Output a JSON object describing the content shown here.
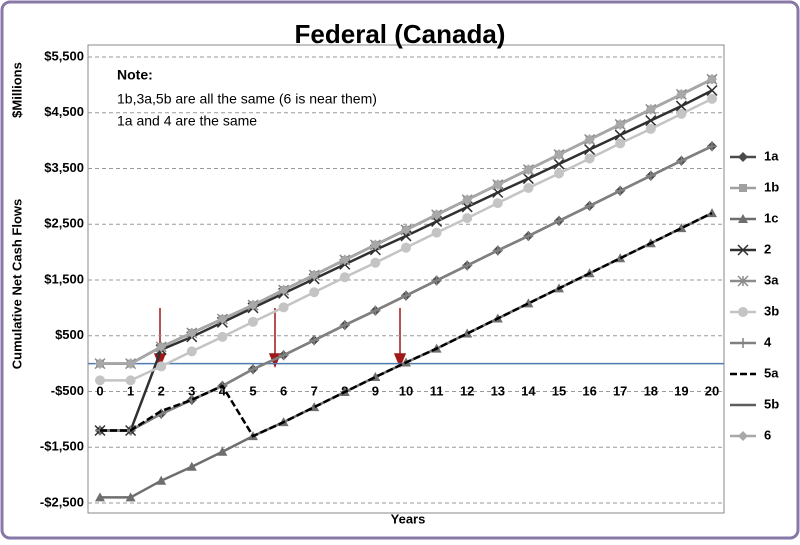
{
  "chart_data": {
    "type": "line",
    "title": "Federal (Canada)",
    "y_label": "Cumulative Net Cash Flows",
    "y_unit_label": "$Millions",
    "x_label": "Years",
    "notes": [
      "Note:",
      "1b,3a,5b are all the same (6 is near them)",
      "1a and 4 are the same"
    ],
    "categories": [
      0,
      1,
      2,
      3,
      4,
      5,
      6,
      7,
      8,
      9,
      10,
      11,
      12,
      13,
      14,
      15,
      16,
      17,
      18,
      19,
      20
    ],
    "ylim": [
      -2500,
      5500
    ],
    "yticks": [
      {
        "value": -2500,
        "label": "-$2,500"
      },
      {
        "value": -1500,
        "label": "-$1,500"
      },
      {
        "value": -500,
        "label": "-$500"
      },
      {
        "value": 500,
        "label": "$500"
      },
      {
        "value": 1500,
        "label": "$1,500"
      },
      {
        "value": 2500,
        "label": "$2,500"
      },
      {
        "value": 3500,
        "label": "$3,500"
      },
      {
        "value": 4500,
        "label": "$4,500"
      },
      {
        "value": 5500,
        "label": "$5,500"
      }
    ],
    "grid": true,
    "legend": "right",
    "zero_line_color": "#4f7cb0",
    "series": [
      {
        "name": "1a",
        "color": "#4a4a4a",
        "marker": "diamond",
        "values": [
          -1200,
          -1200,
          -900,
          -650,
          -400,
          -100,
          150,
          420,
          690,
          950,
          1220,
          1490,
          1760,
          2030,
          2290,
          2560,
          2830,
          3100,
          3370,
          3640,
          3900
        ]
      },
      {
        "name": "1b",
        "color": "#a0a0a0",
        "marker": "square",
        "values": [
          0,
          0,
          300,
          550,
          800,
          1050,
          1320,
          1590,
          1860,
          2130,
          2400,
          2670,
          2940,
          3210,
          3480,
          3750,
          4020,
          4290,
          4560,
          4830,
          5100
        ]
      },
      {
        "name": "1c",
        "color": "#6e6e6e",
        "marker": "triangle",
        "values": [
          -2400,
          -2400,
          -2100,
          -1850,
          -1580,
          -1300,
          -1050,
          -780,
          -510,
          -240,
          20,
          270,
          540,
          810,
          1080,
          1350,
          1620,
          1890,
          2160,
          2430,
          2700
        ]
      },
      {
        "name": "2",
        "color": "#303030",
        "marker": "x",
        "values": [
          -1200,
          -1200,
          250,
          480,
          740,
          1000,
          1260,
          1520,
          1780,
          2040,
          2290,
          2550,
          2810,
          3070,
          3320,
          3580,
          3840,
          4100,
          4360,
          4620,
          4900
        ]
      },
      {
        "name": "3a",
        "color": "#8c8c8c",
        "marker": "star",
        "values": [
          0,
          0,
          300,
          550,
          800,
          1050,
          1320,
          1590,
          1860,
          2130,
          2400,
          2670,
          2940,
          3210,
          3480,
          3750,
          4020,
          4290,
          4560,
          4830,
          5100
        ]
      },
      {
        "name": "3b",
        "color": "#c4c4c4",
        "marker": "circle",
        "values": [
          -300,
          -300,
          -50,
          220,
          480,
          750,
          1010,
          1280,
          1550,
          1810,
          2080,
          2350,
          2610,
          2880,
          3150,
          3410,
          3680,
          3950,
          4210,
          4480,
          4750
        ]
      },
      {
        "name": "4",
        "color": "#808080",
        "marker": "plus",
        "values": [
          -1200,
          -1200,
          -900,
          -650,
          -400,
          -100,
          150,
          420,
          690,
          950,
          1220,
          1490,
          1760,
          2030,
          2290,
          2560,
          2830,
          3100,
          3370,
          3640,
          3900
        ]
      },
      {
        "name": "5a",
        "color": "#000000",
        "marker": "none",
        "dashed": true,
        "values": [
          -1200,
          -1200,
          -850,
          -650,
          -400,
          -1300,
          -1050,
          -780,
          -510,
          -240,
          20,
          270,
          540,
          810,
          1080,
          1350,
          1620,
          1890,
          2160,
          2430,
          2700
        ]
      },
      {
        "name": "5b",
        "color": "#5e5e5e",
        "marker": "none",
        "values": [
          0,
          0,
          300,
          550,
          800,
          1050,
          1320,
          1590,
          1860,
          2130,
          2400,
          2670,
          2940,
          3210,
          3480,
          3750,
          4020,
          4290,
          4560,
          4830,
          5100
        ]
      },
      {
        "name": "6",
        "color": "#a8a8a8",
        "marker": "diamond",
        "values": [
          0,
          0,
          300,
          550,
          800,
          1050,
          1320,
          1590,
          1860,
          2130,
          2400,
          2670,
          2940,
          3210,
          3480,
          3750,
          4020,
          4290,
          4560,
          4830,
          5100
        ]
      }
    ]
  }
}
